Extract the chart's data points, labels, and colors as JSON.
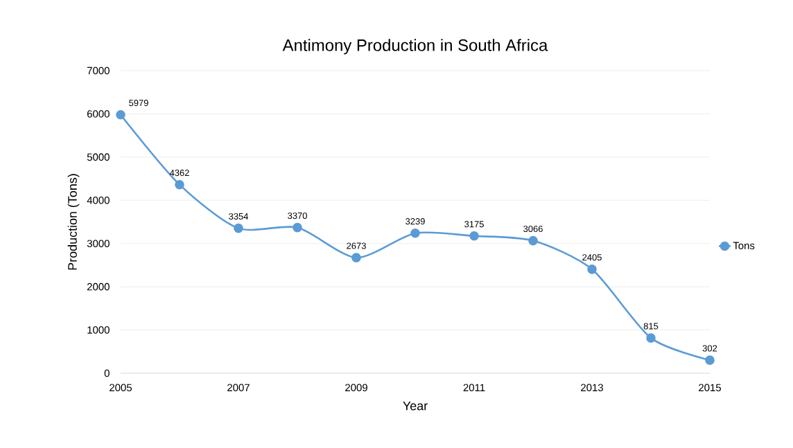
{
  "chart_data": {
    "type": "line",
    "title": "Antimony Production in South Africa",
    "xlabel": "Year",
    "ylabel": "Production (Tons)",
    "x": [
      2005,
      2006,
      2007,
      2008,
      2009,
      2010,
      2011,
      2012,
      2013,
      2014,
      2015
    ],
    "series": [
      {
        "name": "Tons",
        "color": "#5b9bd5",
        "values": [
          5979,
          4362,
          3354,
          3370,
          2673,
          3239,
          3175,
          3066,
          2405,
          815,
          302
        ]
      }
    ],
    "xlim": [
      2005,
      2015
    ],
    "xticks": [
      2005,
      2007,
      2009,
      2011,
      2013,
      2015
    ],
    "ylim": [
      0,
      7000
    ],
    "yticks": [
      0,
      1000,
      2000,
      3000,
      4000,
      5000,
      6000,
      7000
    ],
    "grid": "y",
    "legend": "right",
    "marker": "circle",
    "line_style": "solid",
    "data_labels": true
  }
}
